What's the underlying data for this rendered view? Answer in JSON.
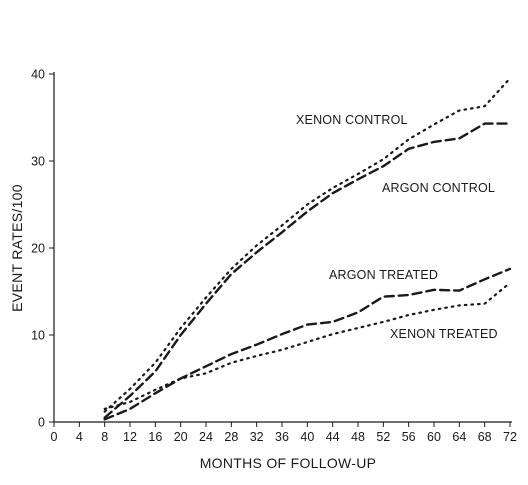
{
  "chart_data": {
    "type": "line",
    "xlabel": "MONTHS OF FOLLOW-UP",
    "ylabel": "EVENT RATES/100",
    "xlim": [
      0,
      72
    ],
    "ylim": [
      0,
      40
    ],
    "x_ticks": [
      0,
      4,
      8,
      12,
      16,
      20,
      24,
      28,
      32,
      36,
      40,
      44,
      48,
      52,
      56,
      60,
      64,
      68,
      72
    ],
    "y_ticks": [
      0,
      10,
      20,
      30,
      40
    ],
    "x_tick_labels": [
      "0",
      "4",
      "8",
      "12",
      "16",
      "20",
      "24",
      "28",
      "32",
      "36",
      "40",
      "44",
      "48",
      "52",
      "56",
      "60",
      "64",
      "68",
      "72"
    ],
    "y_tick_labels": [
      "0",
      "10",
      "20",
      "30",
      "40"
    ],
    "grid": false,
    "line_color": "#1a1a1a",
    "series": [
      {
        "name": "XENON CONTROL",
        "style": "dotted",
        "x": [
          8,
          12,
          16,
          20,
          24,
          28,
          32,
          36,
          40,
          44,
          48,
          52,
          56,
          60,
          64,
          68,
          72
        ],
        "y": [
          1.2,
          3.8,
          6.8,
          10.8,
          14.3,
          17.6,
          20.3,
          22.6,
          25.0,
          26.9,
          28.5,
          30.2,
          32.5,
          34.2,
          35.8,
          36.3,
          39.5
        ]
      },
      {
        "name": "ARGON CONTROL",
        "style": "dashed",
        "x": [
          8,
          12,
          16,
          20,
          24,
          28,
          32,
          36,
          40,
          44,
          48,
          52,
          56,
          60,
          64,
          68,
          72
        ],
        "y": [
          0.5,
          3.0,
          5.8,
          10.0,
          13.6,
          17.0,
          19.5,
          21.8,
          24.2,
          26.3,
          27.9,
          29.4,
          31.4,
          32.2,
          32.6,
          34.3,
          34.3
        ]
      },
      {
        "name": "ARGON TREATED",
        "style": "dashed",
        "x": [
          8,
          12,
          16,
          20,
          24,
          28,
          32,
          36,
          40,
          44,
          48,
          52,
          56,
          60,
          64,
          68,
          72
        ],
        "y": [
          0.3,
          1.5,
          3.3,
          5.0,
          6.4,
          7.8,
          8.9,
          10.1,
          11.2,
          11.5,
          12.6,
          14.4,
          14.6,
          15.2,
          15.1,
          16.4,
          17.6
        ]
      },
      {
        "name": "XENON TREATED",
        "style": "dotted",
        "x": [
          8,
          12,
          16,
          20,
          24,
          28,
          32,
          36,
          40,
          44,
          48,
          52,
          56,
          60,
          64,
          68,
          72
        ],
        "y": [
          1.5,
          2.3,
          3.7,
          5.0,
          5.6,
          6.8,
          7.6,
          8.3,
          9.2,
          10.1,
          10.8,
          11.5,
          12.3,
          12.9,
          13.4,
          13.6,
          16.0
        ]
      }
    ],
    "annotations": [
      {
        "text": "XENON CONTROL",
        "series": "XENON CONTROL"
      },
      {
        "text": "ARGON CONTROL",
        "series": "ARGON CONTROL"
      },
      {
        "text": "ARGON TREATED",
        "series": "ARGON TREATED"
      },
      {
        "text": "XENON TREATED",
        "series": "XENON TREATED"
      }
    ]
  }
}
